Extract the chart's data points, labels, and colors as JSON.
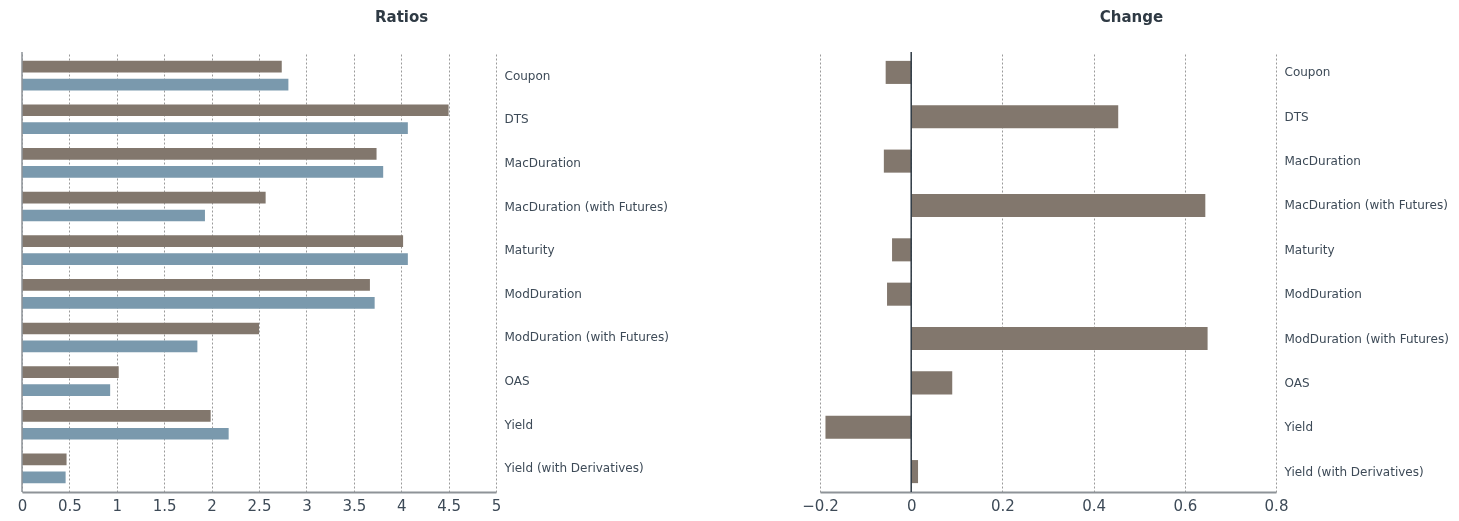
{
  "chart_data": [
    {
      "type": "bar",
      "title": "Ratios",
      "orientation": "horizontal",
      "categories": [
        "Coupon",
        "DTS",
        "MacDuration",
        "MacDuration (with Futures)",
        "Maturity",
        "ModDuration",
        "ModDuration (with Futures)",
        "OAS",
        "Yield",
        "Yield (with Derivatives)"
      ],
      "series": [
        {
          "color": "#82776d",
          "values": [
            2.74,
            4.5,
            3.74,
            2.57,
            4.02,
            3.67,
            2.5,
            1.02,
            1.99,
            0.47
          ]
        },
        {
          "color": "#7a99ad",
          "values": [
            2.81,
            4.07,
            3.81,
            1.93,
            4.07,
            3.72,
            1.85,
            0.93,
            2.18,
            0.46
          ]
        }
      ],
      "xlim": [
        0,
        5
      ],
      "xticks": [
        0,
        0.5,
        1,
        1.5,
        2,
        2.5,
        3,
        3.5,
        4,
        4.5,
        5
      ],
      "grid": "x",
      "legend": false,
      "ref_lines": [
        {
          "axis": "x",
          "value": 0,
          "color": "#8e9398"
        }
      ]
    },
    {
      "type": "bar",
      "title": "Change",
      "orientation": "horizontal",
      "categories": [
        "Coupon",
        "DTS",
        "MacDuration",
        "MacDuration (with Futures)",
        "Maturity",
        "ModDuration",
        "ModDuration (with Futures)",
        "OAS",
        "Yield",
        "Yield (with Derivatives)"
      ],
      "series": [
        {
          "color": "#82776d",
          "values": [
            -0.056,
            0.454,
            -0.06,
            0.645,
            -0.042,
            -0.053,
            0.65,
            0.09,
            -0.188,
            0.015
          ]
        }
      ],
      "xlim": [
        -0.2,
        0.8
      ],
      "xticks": [
        -0.2,
        0,
        0.2,
        0.4,
        0.6,
        0.8
      ],
      "grid": "x",
      "legend": false,
      "ref_lines": [
        {
          "axis": "x",
          "value": 0,
          "color": "#2f3a44"
        }
      ]
    }
  ]
}
